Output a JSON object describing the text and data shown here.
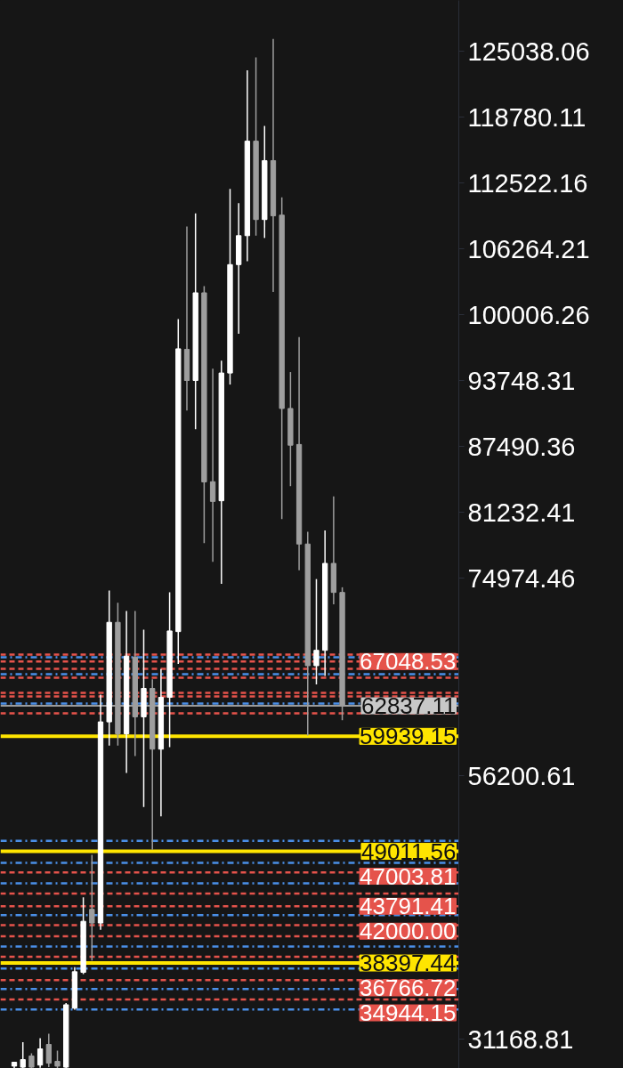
{
  "chart_data": {
    "type": "candlestick",
    "categories": [
      null,
      null,
      null,
      null,
      null,
      null,
      null,
      null,
      null,
      null,
      null,
      null,
      null,
      null,
      null,
      null,
      null,
      null,
      null,
      null,
      null,
      null,
      null,
      null,
      null,
      null,
      null,
      null,
      null,
      null,
      null,
      null,
      null,
      null,
      null,
      null,
      null,
      null,
      null
    ],
    "ohlc": [
      [
        28600,
        28970,
        28400,
        28970
      ],
      [
        28500,
        30870,
        28400,
        29220
      ],
      [
        29560,
        29810,
        28400,
        28500
      ],
      [
        28700,
        31250,
        28450,
        30240
      ],
      [
        30660,
        31670,
        28500,
        28880
      ],
      [
        29050,
        30070,
        28400,
        28600
      ],
      [
        28500,
        34600,
        28400,
        34430
      ],
      [
        34110,
        37990,
        33960,
        37570
      ],
      [
        37510,
        44630,
        37340,
        42360
      ],
      [
        43500,
        48670,
        38640,
        42200
      ],
      [
        42200,
        63900,
        41560,
        61310
      ],
      [
        61310,
        73790,
        59050,
        70770
      ],
      [
        70770,
        72640,
        59050,
        60180
      ],
      [
        60180,
        71850,
        56460,
        67560
      ],
      [
        67470,
        71850,
        58070,
        61790
      ],
      [
        61790,
        70070,
        53220,
        64490
      ],
      [
        64490,
        65360,
        49170,
        58720
      ],
      [
        58720,
        66320,
        52340,
        63640
      ],
      [
        63640,
        73620,
        58910,
        69950
      ],
      [
        69890,
        99580,
        66810,
        96760
      ],
      [
        96700,
        108390,
        90900,
        93750
      ],
      [
        93750,
        109620,
        89120,
        102080
      ],
      [
        102080,
        102720,
        78300,
        84110
      ],
      [
        84130,
        94880,
        76530,
        82260
      ],
      [
        82320,
        95630,
        74420,
        94460
      ],
      [
        94460,
        111950,
        93360,
        104760
      ],
      [
        104760,
        110600,
        98190,
        107510
      ],
      [
        107510,
        123220,
        105090,
        116490
      ],
      [
        116490,
        124450,
        107510,
        109040
      ],
      [
        109040,
        117940,
        107290,
        114640
      ],
      [
        114640,
        126200,
        102170,
        109400
      ],
      [
        109460,
        111150,
        80570,
        91090
      ],
      [
        91090,
        94550,
        83710,
        87600
      ],
      [
        87670,
        97870,
        75720,
        78210
      ],
      [
        78210,
        79370,
        60010,
        66650
      ],
      [
        66650,
        74880,
        64870,
        68110
      ],
      [
        68110,
        79500,
        65680,
        76370
      ],
      [
        76370,
        82740,
        72480,
        73610
      ],
      [
        73610,
        74100,
        61470,
        62840
      ]
    ],
    "colors": [
      "#ffffff",
      "#ffffff",
      "#9e9e9e",
      "#ffffff",
      "#9e9e9e",
      "#9e9e9e",
      "#ffffff",
      "#ffffff",
      "#ffffff",
      "#9e9e9e",
      "#ffffff",
      "#ffffff",
      "#9e9e9e",
      "#ffffff",
      "#9e9e9e",
      "#ffffff",
      "#9e9e9e",
      "#ffffff",
      "#ffffff",
      "#ffffff",
      "#9e9e9e",
      "#ffffff",
      "#9e9e9e",
      "#9e9e9e",
      "#ffffff",
      "#ffffff",
      "#ffffff",
      "#ffffff",
      "#9e9e9e",
      "#ffffff",
      "#9e9e9e",
      "#9e9e9e",
      "#9e9e9e",
      "#9e9e9e",
      "#9e9e9e",
      "#ffffff",
      "#ffffff",
      "#9e9e9e",
      "#9e9e9e"
    ],
    "ylim": [
      28380,
      129860
    ],
    "yticks": [
      125038.06,
      118780.11,
      112522.16,
      106264.21,
      100006.26,
      93748.31,
      87490.36,
      81232.41,
      74974.46,
      56200.61,
      31168.81
    ],
    "tick_labels": "y",
    "grid": false,
    "legend": false,
    "ref_lines": [
      {
        "axis": "y",
        "value": 67700,
        "color": "#e5534b",
        "line_style": "dashed"
      },
      {
        "axis": "y",
        "value": 67450,
        "color": "#4a8fe7",
        "line_style": "dashdot"
      },
      {
        "axis": "y",
        "value": 67048.53,
        "label": "67048.53",
        "color": "#e5534b",
        "line_style": "dashed"
      },
      {
        "axis": "y",
        "value": 66350,
        "color": "#e5534b",
        "line_style": "dashed"
      },
      {
        "axis": "y",
        "value": 65840,
        "color": "#4a8fe7",
        "line_style": "dashdot"
      },
      {
        "axis": "y",
        "value": 65500,
        "color": "#e5534b",
        "line_style": "dashed"
      },
      {
        "axis": "y",
        "value": 64070,
        "color": "#e5534b",
        "line_style": "dashed"
      },
      {
        "axis": "y",
        "value": 63730,
        "color": "#e5534b",
        "line_style": "dashed"
      },
      {
        "axis": "y",
        "value": 63050,
        "color": "#4a8fe7",
        "line_style": "dashdot"
      },
      {
        "axis": "y",
        "value": 62837.11,
        "label": "62837.11",
        "color": "#c8c8c8",
        "line_style": "solid"
      },
      {
        "axis": "y",
        "value": 62120,
        "color": "#e5534b",
        "line_style": "dashed"
      },
      {
        "axis": "y",
        "value": 59939.15,
        "label": "59939.15",
        "color": "#ffe500",
        "line_style": "solid"
      },
      {
        "axis": "y",
        "value": 50000,
        "color": "#4a8fe7",
        "line_style": "dashdot"
      },
      {
        "axis": "y",
        "value": 49011.56,
        "label": "49011.56",
        "color": "#ffe500",
        "line_style": "solid"
      },
      {
        "axis": "y",
        "value": 47910,
        "color": "#4a8fe7",
        "line_style": "dashdot"
      },
      {
        "axis": "y",
        "value": 47003.81,
        "label": "47003.81",
        "color": "#e5534b",
        "line_style": "dashed"
      },
      {
        "axis": "y",
        "value": 45970,
        "color": "#4a8fe7",
        "line_style": "dashdot"
      },
      {
        "axis": "y",
        "value": 44990,
        "color": "#e5534b",
        "line_style": "dashed"
      },
      {
        "axis": "y",
        "value": 43791.41,
        "label": "43791.41",
        "color": "#e5534b",
        "line_style": "dashed"
      },
      {
        "axis": "y",
        "value": 42950,
        "color": "#4a8fe7",
        "line_style": "dashdot"
      },
      {
        "axis": "y",
        "value": 42000.0,
        "label": "42000.00",
        "color": "#e5534b",
        "line_style": "dashed"
      },
      {
        "axis": "y",
        "value": 40940,
        "color": "#e5534b",
        "line_style": "dashed"
      },
      {
        "axis": "y",
        "value": 39970,
        "color": "#4a8fe7",
        "line_style": "dashdot"
      },
      {
        "axis": "y",
        "value": 39000,
        "color": "#e5534b",
        "line_style": "dashed"
      },
      {
        "axis": "y",
        "value": 38397.44,
        "label": "38397.44",
        "color": "#ffe500",
        "line_style": "solid"
      },
      {
        "axis": "y",
        "value": 37870,
        "color": "#4a8fe7",
        "line_style": "dashdot"
      },
      {
        "axis": "y",
        "value": 36766.72,
        "label": "36766.72",
        "color": "#e5534b",
        "line_style": "dashed"
      },
      {
        "axis": "y",
        "value": 35920,
        "color": "#4a8fe7",
        "line_style": "dashdot"
      },
      {
        "axis": "y",
        "value": 34944.15,
        "label": "34944.15",
        "color": "#e5534b",
        "line_style": "dashed"
      },
      {
        "axis": "y",
        "value": 33980,
        "color": "#4a8fe7",
        "line_style": "dashdot"
      }
    ]
  }
}
